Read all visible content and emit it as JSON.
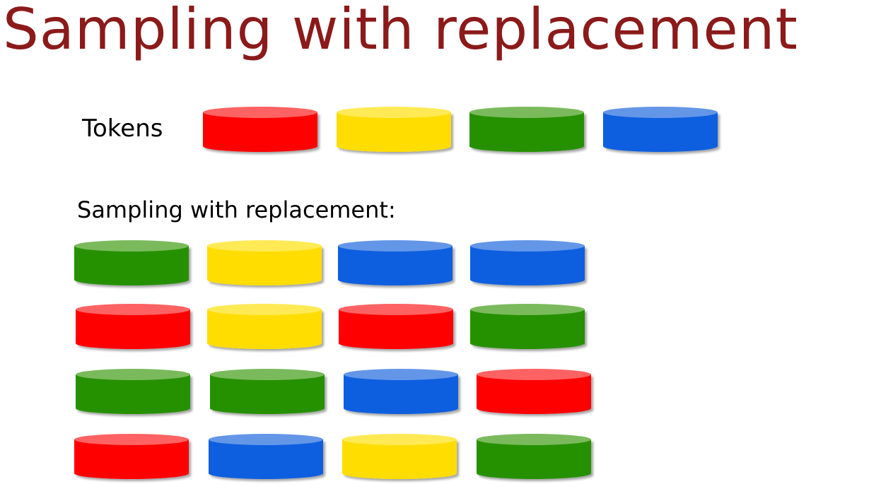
{
  "slide": {
    "title": "Sampling with replacement",
    "title_color": "#8b1a1a",
    "tokens_label": "Tokens",
    "sampling_label": "Sampling with replacement:"
  },
  "palette": {
    "red": {
      "side": "#ff0000",
      "top": "#ff6262"
    },
    "yellow": {
      "side": "#ffdd00",
      "top": "#ffea55"
    },
    "green": {
      "side": "#269100",
      "top": "#7aba5c"
    },
    "blue": {
      "side": "#0f5fdf",
      "top": "#6496e8"
    }
  },
  "tokens": [
    "red",
    "yellow",
    "green",
    "blue"
  ],
  "samples": [
    [
      "green",
      "yellow",
      "blue",
      "blue"
    ],
    [
      "red",
      "yellow",
      "red",
      "green"
    ],
    [
      "green",
      "green",
      "blue",
      "red"
    ],
    [
      "red",
      "blue",
      "yellow",
      "green"
    ]
  ]
}
